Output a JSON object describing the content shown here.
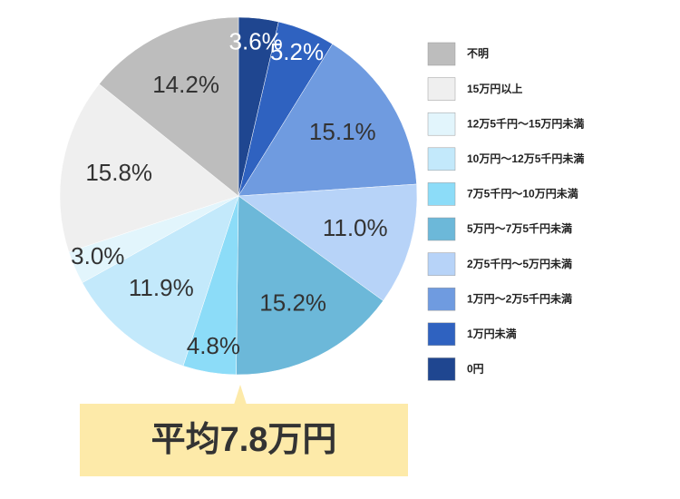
{
  "chart_data": {
    "type": "pie",
    "annotation": "平均7.8万円",
    "series": [
      {
        "name": "0円",
        "color": "#1f4690",
        "values": [
          3.6
        ],
        "value_labels": [
          "3.6%"
        ]
      },
      {
        "name": "1万円未満",
        "color": "#2f62c0",
        "values": [
          5.2
        ],
        "value_labels": [
          "5.2%"
        ]
      },
      {
        "name": "1万円～2万5千円未満",
        "color": "#6f9be0",
        "values": [
          15.1
        ],
        "value_labels": [
          "15.1%"
        ]
      },
      {
        "name": "2万5千円～5万円未満",
        "color": "#b7d3f8",
        "values": [
          11.0
        ],
        "value_labels": [
          "11.0%"
        ]
      },
      {
        "name": "5万円～7万5千円未満",
        "color": "#6cb8d9",
        "values": [
          15.2
        ],
        "value_labels": [
          "15.2%"
        ]
      },
      {
        "name": "7万5千円～10万円未満",
        "color": "#8cdcf8",
        "values": [
          4.8
        ],
        "value_labels": [
          "4.8%"
        ]
      },
      {
        "name": "10万円～12万5千円未満",
        "color": "#c3e9fb",
        "values": [
          11.9
        ],
        "value_labels": [
          "11.9%"
        ]
      },
      {
        "name": "12万5千円～15万円未満",
        "color": "#e2f5fc",
        "values": [
          3.0
        ],
        "value_labels": [
          "3.0%"
        ]
      },
      {
        "name": "15万円以上",
        "color": "#efefef",
        "values": [
          15.8
        ],
        "value_labels": [
          "15.8%"
        ]
      },
      {
        "name": "不明",
        "color": "#bdbdbd",
        "values": [
          14.2
        ],
        "value_labels": [
          "14.2%"
        ]
      }
    ]
  }
}
